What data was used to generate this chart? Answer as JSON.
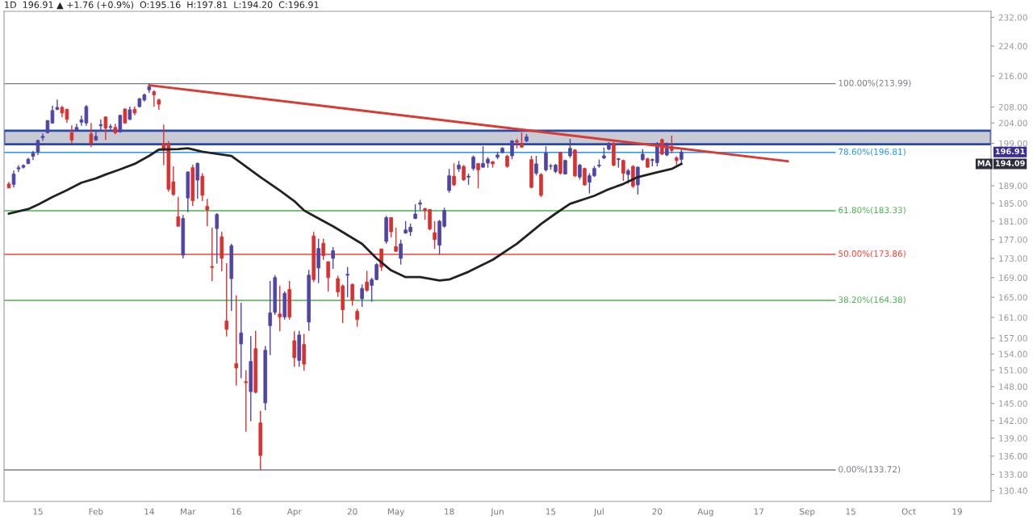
{
  "chart_data": {
    "type": "candlestick",
    "title": "1D  196.91 ▲ +1.76 (+0.9%)  O:195.16  H:197.81  L:194.20  C:196.91",
    "categories": [
      null,
      null,
      null,
      null,
      null,
      null,
      "15",
      null,
      null,
      null,
      null,
      null,
      null,
      null,
      null,
      null,
      null,
      null,
      "Feb",
      null,
      null,
      null,
      null,
      null,
      null,
      null,
      null,
      null,
      null,
      "14",
      null,
      null,
      null,
      null,
      null,
      null,
      null,
      "Mar",
      null,
      null,
      null,
      null,
      null,
      null,
      null,
      null,
      null,
      "16",
      null,
      null,
      null,
      null,
      null,
      null,
      null,
      null,
      null,
      null,
      null,
      "Apr",
      null,
      null,
      null,
      null,
      null,
      null,
      null,
      null,
      null,
      null,
      null,
      "20",
      null,
      null,
      null,
      null,
      null,
      null,
      null,
      null,
      "May",
      null,
      null,
      null,
      null,
      null,
      null,
      null,
      null,
      null,
      null,
      "18",
      null,
      null,
      null,
      null,
      null,
      null,
      null,
      null,
      null,
      "Jun",
      null,
      null,
      null,
      null,
      null,
      null,
      null,
      null,
      null,
      null,
      "15",
      null,
      null,
      null,
      null,
      null,
      null,
      null,
      null,
      null,
      "Jul",
      null,
      null,
      null,
      null,
      null,
      null,
      null,
      null,
      null,
      null,
      null,
      "20",
      null,
      null,
      null,
      null,
      null,
      null,
      null,
      null,
      null,
      "Aug",
      null,
      null,
      null,
      null,
      null,
      null,
      null,
      null,
      null,
      null,
      "17",
      null,
      null,
      null,
      null,
      null,
      null,
      null,
      null,
      null,
      "Sep",
      null,
      null,
      null,
      null,
      null,
      null,
      null,
      null,
      "15",
      null,
      null,
      null,
      null,
      null,
      null,
      null,
      null,
      null,
      null,
      null,
      "Oct",
      null,
      null,
      null,
      null,
      null,
      null,
      null,
      null,
      null,
      "19",
      null,
      null,
      null,
      null,
      null,
      null
    ],
    "ohlc": [
      [
        189.4,
        189.9,
        188.4,
        188.5
      ],
      [
        189.3,
        192.5,
        188.6,
        191.7
      ],
      [
        192.9,
        193.8,
        192.2,
        193.2
      ],
      [
        193.3,
        194.0,
        193.0,
        193.7
      ],
      [
        194.2,
        195.5,
        194.0,
        195.2
      ],
      [
        195.9,
        197.2,
        195.0,
        196.7
      ],
      [
        196.9,
        199.9,
        196.2,
        199.7
      ],
      [
        200.4,
        201.4,
        199.6,
        200.7
      ],
      [
        201.6,
        204.7,
        201.4,
        204.6
      ],
      [
        204.0,
        208.3,
        203.8,
        207.1
      ],
      [
        207.4,
        209.9,
        207.2,
        207.9
      ],
      [
        207.9,
        208.3,
        205.4,
        206.5
      ],
      [
        207.4,
        207.6,
        204.0,
        204.9
      ],
      [
        201.6,
        203.4,
        199.0,
        199.8
      ],
      [
        202.2,
        203.8,
        202.0,
        202.9
      ],
      [
        204.2,
        205.8,
        203.3,
        204.8
      ],
      [
        204.0,
        208.5,
        203.3,
        208.1
      ],
      [
        201.3,
        204.0,
        198.1,
        199.0
      ],
      [
        199.8,
        202.1,
        199.6,
        200.7
      ],
      [
        203.3,
        204.9,
        202.1,
        203.6
      ],
      [
        205.5,
        205.6,
        199.8,
        202.7
      ],
      [
        202.9,
        203.7,
        202.3,
        203.1
      ],
      [
        202.9,
        203.8,
        201.2,
        201.6
      ],
      [
        201.8,
        206.0,
        201.6,
        205.9
      ],
      [
        207.5,
        207.6,
        203.8,
        204.0
      ],
      [
        204.9,
        208.1,
        204.7,
        207.3
      ],
      [
        207.4,
        208.1,
        205.9,
        206.5
      ],
      [
        208.1,
        210.3,
        207.9,
        210.1
      ],
      [
        209.8,
        211.4,
        209.4,
        211.1
      ],
      [
        212.4,
        213.99,
        211.6,
        213.2
      ],
      [
        211.9,
        212.3,
        208.1,
        211.1
      ],
      [
        209.8,
        210.1,
        207.3,
        208.7
      ],
      [
        199.0,
        203.6,
        193.8,
        197.6
      ],
      [
        199.0,
        199.6,
        187.6,
        188.2
      ],
      [
        189.9,
        193.5,
        186.7,
        187.0
      ],
      [
        182.0,
        186.4,
        179.9,
        179.9
      ],
      [
        173.7,
        182.4,
        173.0,
        181.6
      ],
      [
        186.2,
        192.3,
        183.0,
        192.2
      ],
      [
        193.2,
        193.9,
        184.4,
        185.6
      ],
      [
        190.3,
        194.4,
        186.0,
        194.2
      ],
      [
        191.2,
        191.9,
        185.5,
        186.8
      ],
      [
        184.3,
        186.0,
        179.9,
        183.5
      ],
      [
        171.3,
        179.6,
        168.3,
        171.1
      ],
      [
        179.4,
        182.8,
        171.9,
        182.5
      ],
      [
        177.6,
        178.7,
        170.3,
        173.0
      ],
      [
        160.3,
        172.0,
        157.3,
        158.7
      ],
      [
        168.8,
        176.1,
        162.3,
        175.7
      ],
      [
        152.2,
        165.4,
        148.2,
        151.4
      ],
      [
        155.9,
        163.9,
        149.5,
        158.0
      ],
      [
        148.9,
        151.0,
        140.1,
        148.7
      ],
      [
        147.1,
        157.4,
        141.9,
        152.6
      ],
      [
        155.0,
        158.4,
        146.8,
        147.0
      ],
      [
        141.6,
        143.7,
        133.72,
        136.1
      ],
      [
        145.1,
        155.5,
        143.8,
        154.7
      ],
      [
        159.4,
        168.3,
        153.8,
        161.9
      ],
      [
        162.0,
        169.5,
        161.5,
        169.0
      ],
      [
        161.7,
        167.3,
        158.3,
        161.1
      ],
      [
        161.1,
        166.2,
        160.6,
        165.8
      ],
      [
        166.6,
        168.3,
        160.6,
        161.1
      ],
      [
        156.5,
        158.3,
        151.6,
        153.3
      ],
      [
        152.8,
        158.4,
        151.6,
        157.6
      ],
      [
        155.8,
        157.8,
        150.9,
        152.1
      ],
      [
        160.1,
        170.6,
        158.4,
        169.5
      ],
      [
        177.8,
        178.7,
        168.1,
        168.6
      ],
      [
        171.0,
        177.2,
        167.9,
        175.1
      ],
      [
        176.2,
        177.2,
        172.7,
        173.6
      ],
      [
        172.3,
        172.4,
        166.2,
        169.0
      ],
      [
        173.0,
        175.4,
        170.8,
        174.6
      ],
      [
        168.8,
        169.4,
        165.1,
        166.1
      ],
      [
        167.3,
        167.6,
        159.9,
        162.5
      ],
      [
        169.5,
        171.2,
        165.0,
        169.7
      ],
      [
        167.6,
        167.8,
        163.3,
        164.4
      ],
      [
        162.2,
        162.7,
        159.2,
        160.6
      ],
      [
        164.7,
        167.6,
        163.1,
        166.8
      ],
      [
        168.1,
        170.4,
        166.1,
        166.4
      ],
      [
        167.4,
        169.0,
        164.1,
        168.6
      ],
      [
        168.6,
        172.0,
        168.5,
        171.7
      ],
      [
        175.0,
        175.1,
        170.4,
        171.2
      ],
      [
        176.6,
        182.2,
        176.1,
        181.8
      ],
      [
        181.8,
        181.9,
        177.5,
        178.7
      ],
      [
        175.5,
        179.6,
        174.4,
        174.5
      ],
      [
        173.0,
        177.0,
        171.7,
        176.1
      ],
      [
        178.4,
        181.0,
        178.3,
        179.1
      ],
      [
        178.7,
        180.5,
        177.8,
        179.7
      ],
      [
        181.6,
        184.8,
        181.5,
        182.6
      ],
      [
        184.8,
        185.8,
        183.4,
        185.1
      ],
      [
        183.8,
        184.0,
        181.3,
        183.4
      ],
      [
        183.6,
        183.7,
        179.0,
        179.3
      ],
      [
        178.5,
        181.0,
        175.0,
        177.0
      ],
      [
        175.8,
        181.3,
        173.8,
        181.0
      ],
      [
        179.9,
        184.0,
        179.6,
        183.4
      ],
      [
        187.9,
        192.9,
        187.4,
        191.3
      ],
      [
        191.2,
        194.2,
        188.9,
        189.2
      ],
      [
        192.9,
        194.8,
        192.2,
        193.8
      ],
      [
        193.5,
        193.8,
        190.1,
        190.4
      ],
      [
        191.0,
        191.8,
        189.2,
        191.2
      ],
      [
        193.0,
        196.1,
        192.5,
        195.7
      ],
      [
        194.2,
        194.2,
        188.4,
        192.7
      ],
      [
        193.3,
        198.3,
        193.2,
        194.2
      ],
      [
        194.3,
        195.7,
        193.2,
        195.2
      ],
      [
        194.6,
        194.8,
        193.2,
        194.1
      ],
      [
        195.7,
        197.0,
        195.2,
        196.2
      ],
      [
        196.8,
        198.1,
        196.6,
        197.8
      ],
      [
        195.9,
        196.3,
        193.2,
        193.5
      ],
      [
        196.0,
        199.8,
        195.2,
        199.6
      ],
      [
        199.6,
        200.1,
        197.8,
        199.3
      ],
      [
        199.0,
        201.6,
        198.0,
        198.1
      ],
      [
        199.6,
        201.3,
        199.3,
        200.6
      ],
      [
        195.1,
        196.0,
        188.5,
        188.6
      ],
      [
        191.9,
        196.0,
        191.4,
        194.1
      ],
      [
        191.6,
        191.9,
        186.4,
        186.8
      ],
      [
        192.7,
        198.3,
        192.3,
        196.7
      ],
      [
        193.5,
        194.1,
        192.7,
        193.6
      ],
      [
        192.3,
        194.1,
        191.9,
        193.8
      ],
      [
        196.8,
        197.0,
        191.6,
        191.9
      ],
      [
        191.7,
        195.1,
        191.6,
        194.9
      ],
      [
        196.0,
        200.1,
        195.5,
        197.8
      ],
      [
        197.4,
        197.6,
        191.0,
        191.3
      ],
      [
        191.0,
        194.1,
        190.4,
        193.8
      ],
      [
        193.0,
        193.2,
        189.0,
        189.2
      ],
      [
        189.8,
        191.9,
        187.2,
        191.3
      ],
      [
        191.3,
        193.6,
        191.0,
        193.0
      ],
      [
        193.6,
        195.1,
        193.2,
        193.8
      ],
      [
        195.5,
        198.0,
        195.2,
        196.0
      ],
      [
        197.6,
        199.3,
        197.3,
        199.0
      ],
      [
        199.0,
        199.3,
        193.5,
        193.8
      ],
      [
        195.1,
        195.5,
        193.2,
        195.3
      ],
      [
        194.9,
        195.1,
        190.1,
        191.9
      ],
      [
        191.6,
        192.9,
        189.5,
        192.5
      ],
      [
        193.5,
        193.8,
        188.5,
        188.9
      ],
      [
        189.2,
        193.5,
        187.0,
        193.3
      ],
      [
        195.1,
        197.6,
        194.8,
        196.4
      ],
      [
        195.3,
        195.5,
        193.2,
        193.3
      ],
      [
        194.9,
        195.4,
        193.5,
        195.1
      ],
      [
        194.4,
        199.3,
        193.5,
        198.3
      ],
      [
        199.9,
        200.2,
        196.2,
        196.4
      ],
      [
        196.2,
        199.2,
        195.9,
        199.0
      ],
      [
        198.3,
        200.9,
        196.6,
        197.3
      ],
      [
        195.5,
        195.9,
        193.8,
        194.9
      ],
      [
        195.16,
        197.81,
        194.2,
        196.91
      ],
      null,
      null,
      null,
      null,
      null,
      null,
      null,
      null,
      null,
      null,
      null,
      null,
      null,
      null,
      null,
      null,
      null,
      null,
      null,
      null,
      null,
      null,
      null,
      null,
      null,
      null,
      null,
      null,
      null,
      null,
      null,
      null,
      null,
      null,
      null,
      null,
      null,
      null,
      null,
      null,
      null,
      null,
      null,
      null,
      null,
      null,
      null,
      null,
      null,
      null,
      null,
      null,
      null,
      null,
      null,
      null,
      null,
      null,
      null,
      null,
      null,
      null,
      null
    ],
    "colors": [
      "#d8312f",
      "#4f45a5",
      "#4f45a5",
      "#4f45a5",
      "#4f45a5",
      "#4f45a5",
      "#4f45a5",
      "#4f45a5",
      "#4f45a5",
      "#4f45a5",
      "#4f45a5",
      "#d8312f",
      "#d8312f",
      "#d8312f",
      "#4f45a5",
      "#4f45a5",
      "#4f45a5",
      "#d8312f",
      "#4f45a5",
      "#4f45a5",
      "#d8312f",
      "#4f45a5",
      "#d8312f",
      "#4f45a5",
      "#d8312f",
      "#4f45a5",
      "#d8312f",
      "#4f45a5",
      "#4f45a5",
      "#4f45a5",
      "#d8312f",
      "#d8312f",
      "#d8312f",
      "#d8312f",
      "#d8312f",
      "#d8312f",
      "#4f45a5",
      "#4f45a5",
      "#d8312f",
      "#4f45a5",
      "#d8312f",
      "#d8312f",
      "#d8312f",
      "#4f45a5",
      "#d8312f",
      "#d8312f",
      "#4f45a5",
      "#d8312f",
      "#4f45a5",
      "#d8312f",
      "#4f45a5",
      "#d8312f",
      "#d8312f",
      "#4f45a5",
      "#4f45a5",
      "#4f45a5",
      "#d8312f",
      "#4f45a5",
      "#d8312f",
      "#d8312f",
      "#4f45a5",
      "#d8312f",
      "#4f45a5",
      "#d8312f",
      "#4f45a5",
      "#d8312f",
      "#d8312f",
      "#4f45a5",
      "#d8312f",
      "#d8312f",
      "#4f45a5",
      "#d8312f",
      "#d8312f",
      "#4f45a5",
      "#d8312f",
      "#4f45a5",
      "#4f45a5",
      "#d8312f",
      "#4f45a5",
      "#d8312f",
      "#d8312f",
      "#4f45a5",
      "#4f45a5",
      "#4f45a5",
      "#4f45a5",
      "#4f45a5",
      "#d8312f",
      "#d8312f",
      "#d8312f",
      "#4f45a5",
      "#4f45a5",
      "#4f45a5",
      "#d8312f",
      "#4f45a5",
      "#d8312f",
      "#4f45a5",
      "#4f45a5",
      "#d8312f",
      "#4f45a5",
      "#4f45a5",
      "#d8312f",
      "#4f45a5",
      "#4f45a5",
      "#d8312f",
      "#4f45a5",
      "#d8312f",
      "#d8312f",
      "#4f45a5",
      "#d8312f",
      "#4f45a5",
      "#d8312f",
      "#4f45a5",
      "#4f45a5",
      "#4f45a5",
      "#d8312f",
      "#4f45a5",
      "#4f45a5",
      "#d8312f",
      "#4f45a5",
      "#d8312f",
      "#4f45a5",
      "#4f45a5",
      "#4f45a5",
      "#4f45a5",
      "#4f45a5",
      "#d8312f",
      "#4f45a5",
      "#d8312f",
      "#4f45a5",
      "#d8312f",
      "#4f45a5",
      "#4f45a5",
      "#d8312f",
      "#4f45a5",
      "#4f45a5",
      "#d8312f",
      "#4f45a5",
      "#d8312f",
      "#d8312f",
      "#4f45a5",
      null,
      null,
      null,
      null,
      null,
      null,
      null,
      null,
      null,
      null,
      null,
      null,
      null,
      null,
      null,
      null,
      null,
      null,
      null,
      null,
      null,
      null,
      null,
      null,
      null,
      null,
      null,
      null,
      null,
      null,
      null,
      null,
      null,
      null,
      null,
      null,
      null,
      null,
      null,
      null,
      null,
      null,
      null,
      null,
      null,
      null,
      null,
      null,
      null,
      null,
      null,
      null,
      null,
      null,
      null,
      null,
      null,
      null,
      null,
      null,
      null,
      null,
      null
    ],
    "series": [
      {
        "type": "line",
        "color": "#222222",
        "values": [
          182.7,
          null,
          null,
          null,
          183.7,
          null,
          184.7,
          null,
          null,
          186.4,
          null,
          null,
          188.0,
          null,
          null,
          189.7,
          null,
          null,
          190.7,
          null,
          191.6,
          null,
          null,
          192.8,
          null,
          null,
          194.1,
          null,
          null,
          196.0,
          null,
          197.5,
          null,
          null,
          null,
          197.6,
          null,
          197.8,
          null,
          null,
          197.0,
          null,
          null,
          null,
          null,
          null,
          196.0,
          null,
          null,
          null,
          null,
          null,
          191.0,
          null,
          null,
          null,
          187.9,
          null,
          null,
          185.5,
          null,
          183.4,
          null,
          182.2,
          null,
          null,
          null,
          179.9,
          null,
          null,
          null,
          null,
          null,
          176.1,
          null,
          null,
          173.0,
          null,
          null,
          170.5,
          null,
          null,
          169.1,
          null,
          null,
          169.1,
          null,
          null,
          null,
          168.4,
          null,
          168.6,
          null,
          null,
          null,
          170.2,
          null,
          null,
          null,
          null,
          172.7,
          null,
          null,
          null,
          null,
          176.1,
          null,
          null,
          null,
          null,
          180.4,
          null,
          null,
          182.7,
          null,
          null,
          184.9,
          null,
          null,
          null,
          null,
          186.7,
          null,
          null,
          188.2,
          null,
          null,
          189.4,
          null,
          null,
          191.0,
          null,
          null,
          null,
          192.1,
          null,
          null,
          192.9,
          null,
          194.09,
          null,
          null,
          null,
          null,
          null,
          null,
          null,
          null,
          null,
          null,
          null,
          null,
          null,
          null,
          null,
          null,
          null,
          null,
          null,
          null,
          null,
          null,
          null,
          null,
          null,
          null,
          null,
          null,
          null,
          null,
          null,
          null,
          null,
          null,
          null,
          null,
          null,
          null,
          null,
          null,
          null,
          null,
          null,
          null,
          null,
          null,
          null,
          null,
          null,
          null,
          null,
          null,
          null,
          null,
          null,
          null,
          null,
          null,
          null,
          null,
          null,
          null,
          null
        ]
      },
      {
        "type": "line",
        "color": "#d83a34",
        "values": [
          null,
          null,
          null,
          null,
          null,
          null,
          null,
          null,
          null,
          null,
          null,
          null,
          null,
          null,
          null,
          null,
          null,
          null,
          null,
          null,
          null,
          null,
          null,
          null,
          null,
          null,
          null,
          null,
          null,
          213.6,
          null,
          null,
          null,
          null,
          null,
          null,
          null,
          null,
          null,
          null,
          null,
          null,
          null,
          null,
          null,
          null,
          null,
          null,
          null,
          null,
          null,
          null,
          null,
          null,
          null,
          null,
          null,
          null,
          null,
          null,
          null,
          null,
          null,
          null,
          null,
          null,
          null,
          null,
          null,
          null,
          null,
          null,
          null,
          null,
          null,
          null,
          null,
          null,
          null,
          null,
          null,
          null,
          null,
          null,
          null,
          null,
          null,
          null,
          null,
          null,
          null,
          null,
          null,
          null,
          null,
          null,
          null,
          null,
          null,
          null,
          null,
          null,
          null,
          null,
          null,
          null,
          null,
          null,
          null,
          null,
          null,
          null,
          null,
          null,
          null,
          null,
          null,
          null,
          null,
          null,
          null,
          null,
          null,
          null,
          null,
          null,
          null,
          null,
          null,
          null,
          null,
          null,
          null,
          null,
          null,
          null,
          null,
          null,
          null,
          null,
          null,
          null,
          null,
          null,
          null,
          null,
          null,
          null,
          null,
          null,
          null,
          null,
          null,
          null,
          null,
          null,
          null,
          null,
          null,
          null,
          null,
          194.7,
          null,
          null,
          null,
          null,
          null,
          null,
          null,
          null,
          null,
          null,
          null,
          null,
          null,
          null,
          null,
          null,
          null,
          null,
          null,
          null,
          null,
          null,
          null,
          null,
          null,
          null,
          null,
          null,
          null,
          null,
          null,
          null,
          null,
          null,
          null,
          null,
          null,
          null,
          null,
          null,
          null
        ]
      }
    ],
    "log": true,
    "ylim": [
      128.7,
      233.7
    ],
    "yticks": [
      {
        "value": 130.4,
        "label": "130.40"
      },
      {
        "value": 133,
        "label": "133.00"
      },
      {
        "value": 136,
        "label": "136.00"
      },
      {
        "value": 139,
        "label": "139.00"
      },
      {
        "value": 142,
        "label": "142.00"
      },
      {
        "value": 145,
        "label": "145.00"
      },
      {
        "value": 148,
        "label": "148.00"
      },
      {
        "value": 151,
        "label": "151.00"
      },
      {
        "value": 154,
        "label": "154.00"
      },
      {
        "value": 157,
        "label": "157.00"
      },
      {
        "value": 161,
        "label": "161.00"
      },
      {
        "value": 165,
        "label": "165.00"
      },
      {
        "value": 169,
        "label": "169.00"
      },
      {
        "value": 173,
        "label": "173.00"
      },
      {
        "value": 177,
        "label": "177.00"
      },
      {
        "value": 181,
        "label": "181.00"
      },
      {
        "value": 185,
        "label": "185.00"
      },
      {
        "value": 189,
        "label": "189.00"
      },
      {
        "value": 199,
        "label": "199.00"
      },
      {
        "value": 204,
        "label": "204.00"
      },
      {
        "value": 208,
        "label": "208.00"
      },
      {
        "value": 216,
        "label": "216.00"
      },
      {
        "value": 224,
        "label": "224.00"
      },
      {
        "value": 232,
        "label": "232.00"
      }
    ],
    "ref_lines": [
      {
        "axis": "y",
        "value": 213.99,
        "label": "100.00%(213.99)",
        "color": "#787b86"
      },
      {
        "axis": "y",
        "value": 196.81,
        "label": "78.60%(196.81)",
        "color": "#2196f3"
      },
      {
        "axis": "y",
        "value": 183.33,
        "label": "61.80%(183.33)",
        "color": "#4caf50"
      },
      {
        "axis": "y",
        "value": 173.86,
        "label": "50.00%(173.86)",
        "color": "#f44336"
      },
      {
        "axis": "y",
        "value": 164.38,
        "label": "38.20%(164.38)",
        "color": "#4caf50"
      },
      {
        "axis": "y",
        "value": 133.72,
        "label": "0.00%(133.72)",
        "color": "#787b86"
      }
    ],
    "bands": [
      {
        "axis": "y",
        "from": 198.8,
        "to": 202.1,
        "color": "#c8cad4"
      }
    ],
    "annotations": [
      "196.91",
      "MA",
      "194.09"
    ],
    "grid": false
  }
}
